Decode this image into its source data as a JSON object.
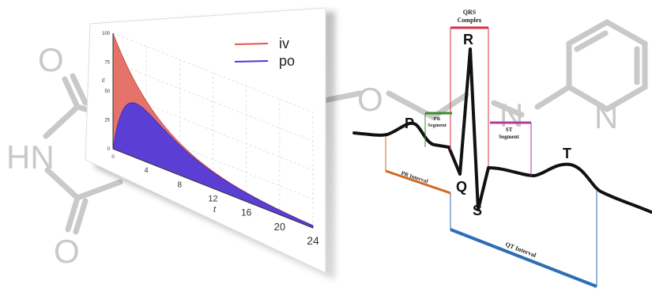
{
  "molecule": {
    "atoms": {
      "o_top": "O",
      "nh": "HN",
      "o_bottom": "O",
      "o_ether": "O",
      "n_ring": "N",
      "n_pyridine": "N"
    },
    "color": "#c9c9c9"
  },
  "pk_chart": {
    "chart_data": {
      "type": "area",
      "xlabel": "t",
      "ylabel": "c",
      "xlim": [
        0,
        24
      ],
      "ylim": [
        0,
        100
      ],
      "x_ticks": [
        "0",
        "4",
        "8",
        "12",
        "16",
        "20",
        "24"
      ],
      "y_ticks": [
        "0",
        "25",
        "50",
        "75",
        "100"
      ],
      "grid": true,
      "legend_position": "top-right",
      "series": [
        {
          "name": "iv",
          "color": "#e05a4f",
          "model": "iv bolus, c0 100, k 0.16"
        },
        {
          "name": "po",
          "color": "#4b3ae0",
          "model": "oral, ka 0.7, k 0.16, peak ~47 at t ~4"
        }
      ]
    }
  },
  "ecg": {
    "waves": {
      "p": "P",
      "q": "Q",
      "r": "R",
      "s": "S",
      "t": "T"
    },
    "annotations": {
      "qrs_top": "QRS",
      "qrs_bottom": "Complex",
      "pr_segment_top": "PR",
      "pr_segment_bottom": "Segment",
      "st_segment_top": "ST",
      "st_segment_bottom": "Segment",
      "pr_interval": "PR Interval",
      "qt_interval": "QT Interval"
    },
    "colors": {
      "qrs": "#d8334a",
      "pr_segment": "#3f8a2c",
      "st_segment": "#b23a9b",
      "pr_interval": "#d2691e",
      "qt_interval": "#2f6db5"
    }
  }
}
